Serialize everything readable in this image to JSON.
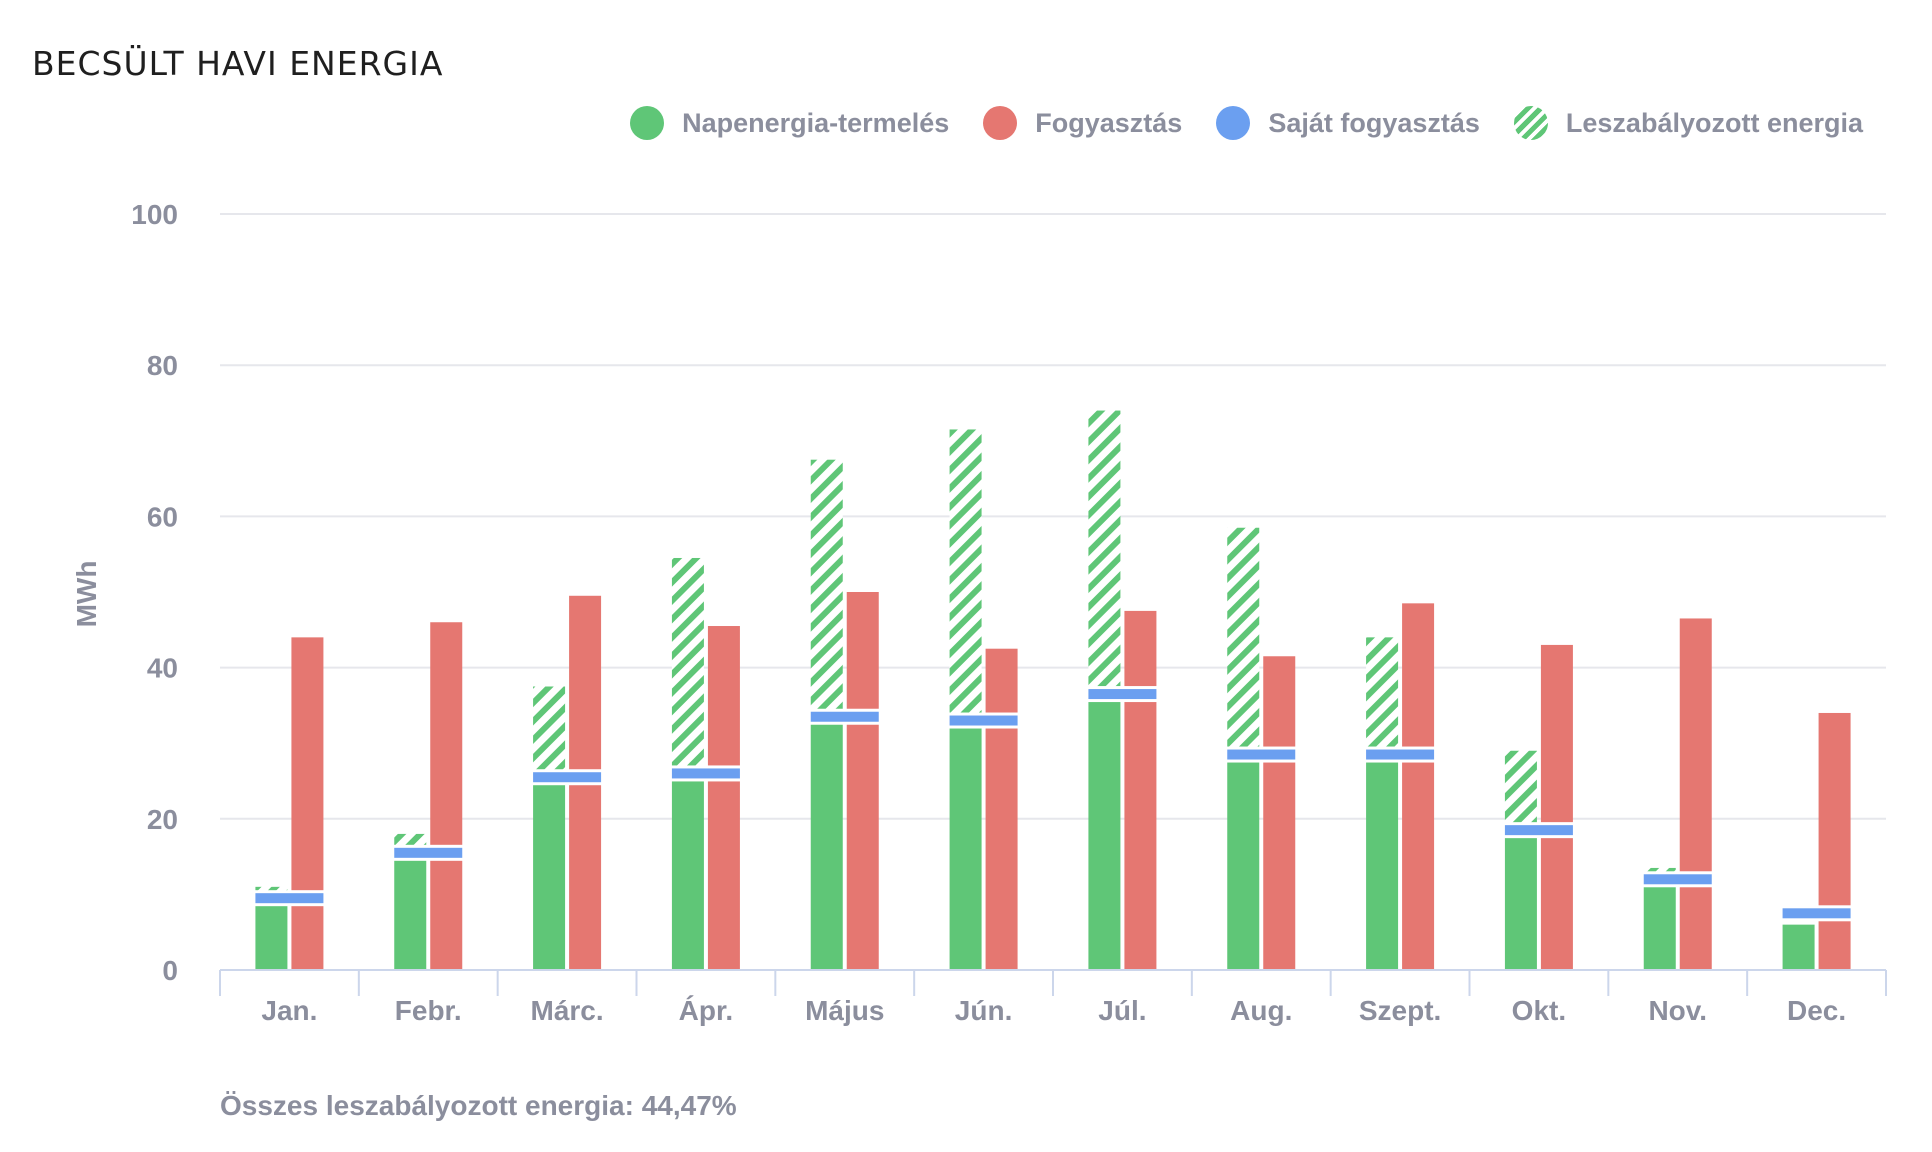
{
  "title": "BECSÜLT HAVI ENERGIA",
  "legend": [
    {
      "label": "Napenergia-termelés",
      "color": "#5fc677",
      "kind": "dot"
    },
    {
      "label": "Fogyasztás",
      "color": "#e57771",
      "kind": "dot"
    },
    {
      "label": "Saját fogyasztás",
      "color": "#6b9ff0",
      "kind": "dot"
    },
    {
      "label": "Leszabályozott energia",
      "color": "#5fc677",
      "kind": "hatched"
    }
  ],
  "footer_note": "Összes leszabályozott energia: 44,47%",
  "chart_data": {
    "type": "bar",
    "ylabel": "MWh",
    "ylim": [
      0,
      100
    ],
    "yticks": [
      0,
      20,
      40,
      60,
      80,
      100
    ],
    "grid": true,
    "legend_position": "top-right",
    "categories": [
      "Jan.",
      "Febr.",
      "Márc.",
      "Ápr.",
      "Május",
      "Jún.",
      "Júl.",
      "Aug.",
      "Szept.",
      "Okt.",
      "Nov.",
      "Dec."
    ],
    "series": [
      {
        "name": "Napenergia-termelés",
        "color": "#5fc677",
        "values": [
          11,
          18,
          37.5,
          54.5,
          67.5,
          71.5,
          74,
          58.5,
          44,
          29,
          13.5,
          6
        ]
      },
      {
        "name": "Fogyasztás",
        "color": "#e57771",
        "values": [
          44,
          46,
          49.5,
          45.5,
          50,
          42.5,
          47.5,
          41.5,
          48.5,
          43,
          46.5,
          34
        ]
      },
      {
        "name": "Saját fogyasztás",
        "color": "#6b9ff0",
        "values": [
          9.5,
          15.5,
          25.5,
          26,
          33.5,
          33,
          36.5,
          28.5,
          28.5,
          18.5,
          12,
          7.5
        ]
      },
      {
        "name": "Leszabályozott energia",
        "color": "#5fc677",
        "pattern": "hatched",
        "values": [
          1.5,
          2.5,
          12,
          28.5,
          34,
          38.5,
          37.5,
          30,
          15.5,
          10.5,
          1.5,
          0
        ]
      }
    ]
  }
}
